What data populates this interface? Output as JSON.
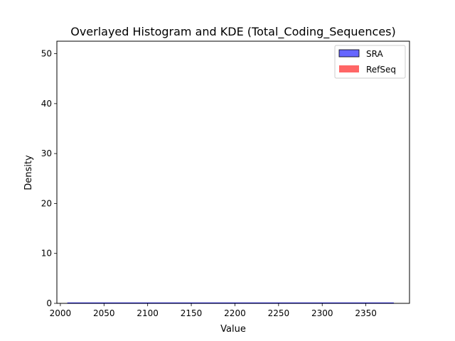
{
  "chart_data": {
    "type": "histogram",
    "title": "Overlayed Histogram and KDE (Total_Coding_Sequences)",
    "xlabel": "Value",
    "ylabel": "Density",
    "xlim": [
      1996,
      2400
    ],
    "ylim": [
      0,
      52.5
    ],
    "xticks": [
      2000,
      2050,
      2100,
      2150,
      2200,
      2250,
      2300,
      2350
    ],
    "yticks": [
      0,
      10,
      20,
      30,
      40,
      50
    ],
    "grid": false,
    "legend_position": "top-right",
    "series": [
      {
        "name": "SRA",
        "color": "#0000ff",
        "alpha": 0.6,
        "edge_color": "#000000",
        "kde": {
          "x": [
            2008,
            2382
          ],
          "y": [
            0.05,
            0.05
          ]
        },
        "hist": {
          "x_range": [
            2008,
            2382
          ],
          "density": 0.05
        }
      },
      {
        "name": "RefSeq",
        "color": "#ff0000",
        "alpha": 0.6,
        "edge_color": "none",
        "kde": {
          "x": [],
          "y": []
        },
        "hist": {
          "x_range": [],
          "density": 0
        }
      }
    ]
  }
}
